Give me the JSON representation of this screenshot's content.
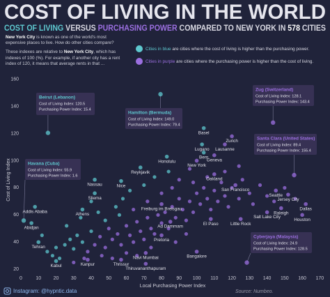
{
  "chart_data": {
    "type": "scatter",
    "title": "COST OF LIVING IN THE WORLD",
    "subtitle": [
      {
        "text": "COST OF LIVING",
        "color": "#5ec8cf"
      },
      {
        "text": " VERSUS ",
        "color": "#d8d8e2"
      },
      {
        "text": "PURCHASING POWER",
        "color": "#9b6fe0"
      },
      {
        "text": " COMPARED TO NEW YORK IN ",
        "color": "#d8d8e2"
      },
      {
        "text": "578",
        "color": "#ffffff"
      },
      {
        "text": " CITIES",
        "color": "#d8d8e2"
      }
    ],
    "intro": [
      [
        {
          "text": "New York City",
          "bold": true
        },
        {
          "text": " is known as one of the world's most expensive places to live. How do other cities compare?"
        }
      ],
      [
        {
          "text": "These indexes are relative to "
        },
        {
          "text": "New York City",
          "bold": true
        },
        {
          "text": ", which has indexes of 100 (%). For example, if another city has a rent index of 120, it means that average rents in that ..."
        }
      ]
    ],
    "legend": [
      [
        {
          "text": "Cities in blue",
          "color": "#5ec8cf"
        },
        {
          "text": " are cities where the cost of living is higher than the purchasing power."
        }
      ],
      [
        {
          "text": "Cities in purple",
          "color": "#9b6fe0"
        },
        {
          "text": " are cities where the purchasing power is higher than the cost of living."
        }
      ]
    ],
    "color_higher_cost": "#5ec8cf",
    "color_higher_power": "#9b6fe0",
    "x_label": "Local Purchasing Power Index",
    "y_label": "Cost of Living Index",
    "xlim": [
      0,
      175
    ],
    "ylim": [
      17,
      165
    ],
    "xticks": [
      0,
      10,
      20,
      30,
      40,
      50,
      60,
      70,
      80,
      90,
      100,
      110,
      120,
      130,
      140,
      150,
      160,
      170
    ],
    "yticks": [
      20,
      40,
      60,
      80,
      100,
      120,
      140,
      160
    ],
    "callouts": [
      {
        "city": "Beirut (Lebanon)",
        "x": 15.4,
        "y": 120.5,
        "lines": [
          "Cost of Living Index: 120.5",
          "Purchasing Power Index: 15.4"
        ]
      },
      {
        "city": "Hamilton (Bermuda)",
        "x": 79.4,
        "y": 149.0,
        "lines": [
          "Cost of Living Index: 149.0",
          "Purchasing Power Index: 79.4"
        ]
      },
      {
        "city": "Zug (Switzerland)",
        "x": 143.4,
        "y": 128.1,
        "lines": [
          "Cost of Living Index: 128.1",
          "Purchasing Power Index: 143.4"
        ]
      },
      {
        "city": "Santa Clara (United States)",
        "x": 155.4,
        "y": 89.4,
        "lines": [
          "Cost of Living Index: 89.4",
          "Purchasing Power Index: 155.4"
        ]
      },
      {
        "city": "Havana (Cuba)",
        "x": 1.6,
        "y": 55.9,
        "lines": [
          "Cost of Living Index: 55.9",
          "Purchasing Power Index: 1.6"
        ]
      },
      {
        "city": "Cyberjaya (Malaysia)",
        "x": 128.5,
        "y": 24.9,
        "lines": [
          "Cost of Living Index: 24.9",
          "Purchasing Power Index: 128.5"
        ]
      }
    ],
    "cities": {
      "names": [
        "Basel",
        "Zurich",
        "Lugano",
        "Bern",
        "Lausanne",
        "Geneva",
        "Honolulu",
        "Reykjavik",
        "Nassau",
        "Nice",
        "Oakland",
        "New York",
        "San Francisco",
        "Seattle",
        "Jersey City",
        "Dallas",
        "Houston",
        "Raleigh",
        "Salt Lake City",
        "Little Rock",
        "El Paso",
        "Sliema",
        "Athens",
        "Addis Ababa",
        "Abidjan",
        "Tehran",
        "Kabul",
        "Kanpur",
        "Thrissur",
        "Thiruvananthapuram",
        "Navi Mumbai",
        "Bangalore",
        "Pretoria",
        "Ad Dammam",
        "Freiburg im Breisgau"
      ],
      "x": [
        104,
        120,
        103,
        104,
        116,
        110,
        83,
        68,
        42,
        57,
        110,
        100,
        122,
        145,
        152,
        162,
        160,
        148,
        140,
        125,
        108,
        42,
        35,
        8,
        6,
        10,
        20,
        38,
        57,
        71,
        71,
        100,
        80,
        85,
        80
      ],
      "y": [
        124,
        118,
        112,
        106,
        112,
        104,
        103,
        95,
        86,
        85,
        90,
        100,
        82,
        78,
        75,
        68,
        60,
        65,
        62,
        57,
        57,
        76,
        64,
        66,
        54,
        40,
        26,
        27,
        27,
        24,
        32,
        33,
        45,
        55,
        68
      ]
    },
    "others": {
      "x": [
        25,
        28,
        30,
        32,
        35,
        38,
        40,
        42,
        45,
        48,
        50,
        52,
        55,
        57,
        60,
        62,
        64,
        66,
        68,
        70,
        72,
        74,
        76,
        78,
        80,
        82,
        84,
        86,
        88,
        90,
        92,
        94,
        96,
        98,
        100,
        102,
        104,
        106,
        108,
        110,
        112,
        114,
        116,
        118,
        120,
        124,
        126,
        130,
        132,
        136,
        140,
        144,
        150,
        156,
        18,
        20,
        22,
        15,
        12,
        26,
        34,
        44,
        54,
        58,
        62,
        70,
        76,
        84,
        90,
        96,
        46,
        52,
        60,
        66,
        74,
        88,
        94,
        30,
        36,
        64,
        72,
        80,
        86,
        98,
        106,
        116,
        124,
        48,
        56,
        40
      ],
      "y": [
        38,
        42,
        35,
        45,
        40,
        33,
        48,
        38,
        44,
        36,
        50,
        42,
        46,
        38,
        52,
        45,
        40,
        55,
        48,
        42,
        58,
        50,
        46,
        60,
        54,
        62,
        50,
        66,
        58,
        72,
        64,
        56,
        70,
        62,
        76,
        68,
        80,
        72,
        64,
        78,
        70,
        84,
        74,
        66,
        80,
        72,
        86,
        76,
        68,
        82,
        74,
        70,
        80,
        72,
        30,
        36,
        28,
        33,
        45,
        52,
        58,
        62,
        66,
        72,
        78,
        82,
        88,
        92,
        86,
        94,
        30,
        28,
        32,
        30,
        36,
        40,
        46,
        25,
        28,
        64,
        70,
        76,
        80,
        84,
        88,
        92,
        96,
        56,
        60,
        70
      ]
    },
    "footer": "Instagram: @hypntic.data",
    "source": "Source: Numbeo."
  }
}
